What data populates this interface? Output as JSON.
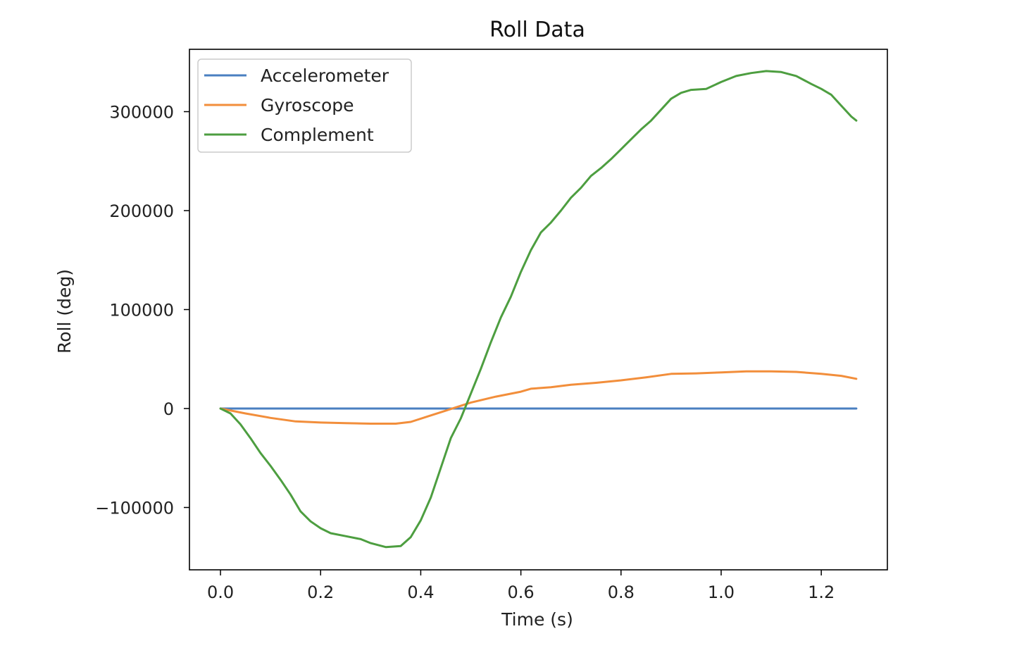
{
  "chart_data": {
    "type": "line",
    "title": "Roll Data",
    "xlabel": "Time (s)",
    "ylabel": "Roll (deg)",
    "xlim": [
      -0.062,
      1.332
    ],
    "ylim": [
      -163000,
      363000
    ],
    "xticks": [
      0.0,
      0.2,
      0.4,
      0.6,
      0.8,
      1.0,
      1.2
    ],
    "xtick_labels": [
      "0.0",
      "0.2",
      "0.4",
      "0.6",
      "0.8",
      "1.0",
      "1.2"
    ],
    "yticks": [
      -100000,
      0,
      100000,
      200000,
      300000
    ],
    "ytick_labels": [
      "−100000",
      "0",
      "100000",
      "200000",
      "300000"
    ],
    "grid": false,
    "legend_position": "upper-left",
    "series": [
      {
        "name": "Accelerometer",
        "color": "#4a7fc0",
        "points": [
          [
            0.0,
            0
          ],
          [
            1.27,
            0
          ]
        ]
      },
      {
        "name": "Gyroscope",
        "color": "#f28e3b",
        "points": [
          [
            0.0,
            0
          ],
          [
            0.05,
            -5000
          ],
          [
            0.1,
            -9500
          ],
          [
            0.15,
            -13000
          ],
          [
            0.2,
            -14200
          ],
          [
            0.25,
            -14800
          ],
          [
            0.3,
            -15300
          ],
          [
            0.35,
            -15300
          ],
          [
            0.38,
            -13500
          ],
          [
            0.42,
            -7000
          ],
          [
            0.46,
            -500
          ],
          [
            0.5,
            6000
          ],
          [
            0.55,
            12000
          ],
          [
            0.6,
            17000
          ],
          [
            0.62,
            20000
          ],
          [
            0.66,
            21500
          ],
          [
            0.7,
            24000
          ],
          [
            0.75,
            26000
          ],
          [
            0.8,
            28500
          ],
          [
            0.85,
            31500
          ],
          [
            0.9,
            35000
          ],
          [
            0.95,
            35500
          ],
          [
            1.0,
            36500
          ],
          [
            1.05,
            37500
          ],
          [
            1.1,
            37500
          ],
          [
            1.15,
            37000
          ],
          [
            1.2,
            35000
          ],
          [
            1.24,
            33000
          ],
          [
            1.27,
            30000
          ]
        ]
      },
      {
        "name": "Complement",
        "color": "#4d9e40",
        "points": [
          [
            0.0,
            0
          ],
          [
            0.02,
            -5000
          ],
          [
            0.04,
            -16000
          ],
          [
            0.06,
            -30000
          ],
          [
            0.08,
            -45000
          ],
          [
            0.1,
            -58000
          ],
          [
            0.12,
            -72000
          ],
          [
            0.14,
            -87000
          ],
          [
            0.16,
            -104000
          ],
          [
            0.18,
            -114000
          ],
          [
            0.2,
            -121000
          ],
          [
            0.22,
            -126000
          ],
          [
            0.25,
            -129000
          ],
          [
            0.28,
            -132000
          ],
          [
            0.3,
            -136000
          ],
          [
            0.33,
            -140000
          ],
          [
            0.36,
            -139000
          ],
          [
            0.38,
            -130000
          ],
          [
            0.4,
            -113000
          ],
          [
            0.42,
            -90000
          ],
          [
            0.44,
            -60000
          ],
          [
            0.46,
            -30000
          ],
          [
            0.48,
            -10000
          ],
          [
            0.5,
            15000
          ],
          [
            0.52,
            40000
          ],
          [
            0.54,
            67000
          ],
          [
            0.56,
            92000
          ],
          [
            0.58,
            113000
          ],
          [
            0.6,
            138000
          ],
          [
            0.62,
            160000
          ],
          [
            0.64,
            178000
          ],
          [
            0.66,
            188000
          ],
          [
            0.68,
            200000
          ],
          [
            0.7,
            213000
          ],
          [
            0.72,
            223000
          ],
          [
            0.74,
            235000
          ],
          [
            0.76,
            243000
          ],
          [
            0.78,
            252000
          ],
          [
            0.8,
            262000
          ],
          [
            0.82,
            272000
          ],
          [
            0.84,
            282000
          ],
          [
            0.86,
            291000
          ],
          [
            0.88,
            302000
          ],
          [
            0.9,
            313000
          ],
          [
            0.92,
            319000
          ],
          [
            0.94,
            322000
          ],
          [
            0.97,
            323000
          ],
          [
            1.0,
            330000
          ],
          [
            1.03,
            336000
          ],
          [
            1.06,
            339000
          ],
          [
            1.09,
            341000
          ],
          [
            1.12,
            340000
          ],
          [
            1.15,
            336000
          ],
          [
            1.18,
            328000
          ],
          [
            1.2,
            323000
          ],
          [
            1.22,
            317000
          ],
          [
            1.24,
            306000
          ],
          [
            1.26,
            295000
          ],
          [
            1.27,
            291000
          ]
        ]
      }
    ]
  }
}
